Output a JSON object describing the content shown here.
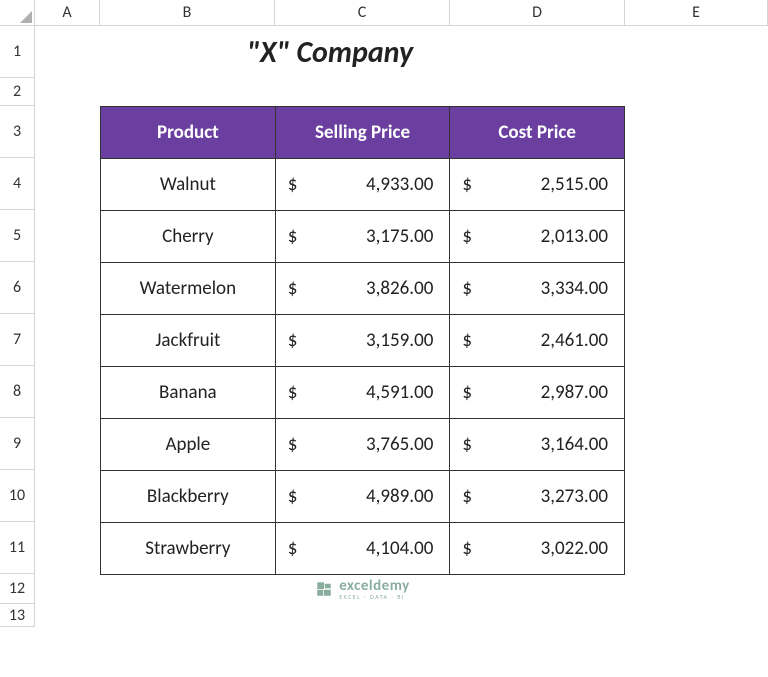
{
  "colors": {
    "header_bg": "#6b3fa0",
    "header_fg": "#ffffff",
    "border": "#333333",
    "grid": "#e8e8e8",
    "wm": "#2a6b4f"
  },
  "columns": [
    "A",
    "B",
    "C",
    "D",
    "E"
  ],
  "rows": [
    "1",
    "2",
    "3",
    "4",
    "5",
    "6",
    "7",
    "8",
    "9",
    "10",
    "11",
    "12",
    "13"
  ],
  "title": "\"X\" Company",
  "table": {
    "headers": {
      "product": "Product",
      "selling": "Selling Price",
      "cost": "Cost Price"
    },
    "currency": "$",
    "rows": [
      {
        "product": "Walnut",
        "selling": "4,933.00",
        "cost": "2,515.00"
      },
      {
        "product": "Cherry",
        "selling": "3,175.00",
        "cost": "2,013.00"
      },
      {
        "product": "Watermelon",
        "selling": "3,826.00",
        "cost": "3,334.00"
      },
      {
        "product": "Jackfruit",
        "selling": "3,159.00",
        "cost": "2,461.00"
      },
      {
        "product": "Banana",
        "selling": "4,591.00",
        "cost": "2,987.00"
      },
      {
        "product": "Apple",
        "selling": "3,765.00",
        "cost": "3,164.00"
      },
      {
        "product": "Blackberry",
        "selling": "4,989.00",
        "cost": "3,273.00"
      },
      {
        "product": "Strawberry",
        "selling": "4,104.00",
        "cost": "3,022.00"
      }
    ]
  },
  "watermark": {
    "main": "exceldemy",
    "sub": "EXCEL · DATA · BI"
  }
}
